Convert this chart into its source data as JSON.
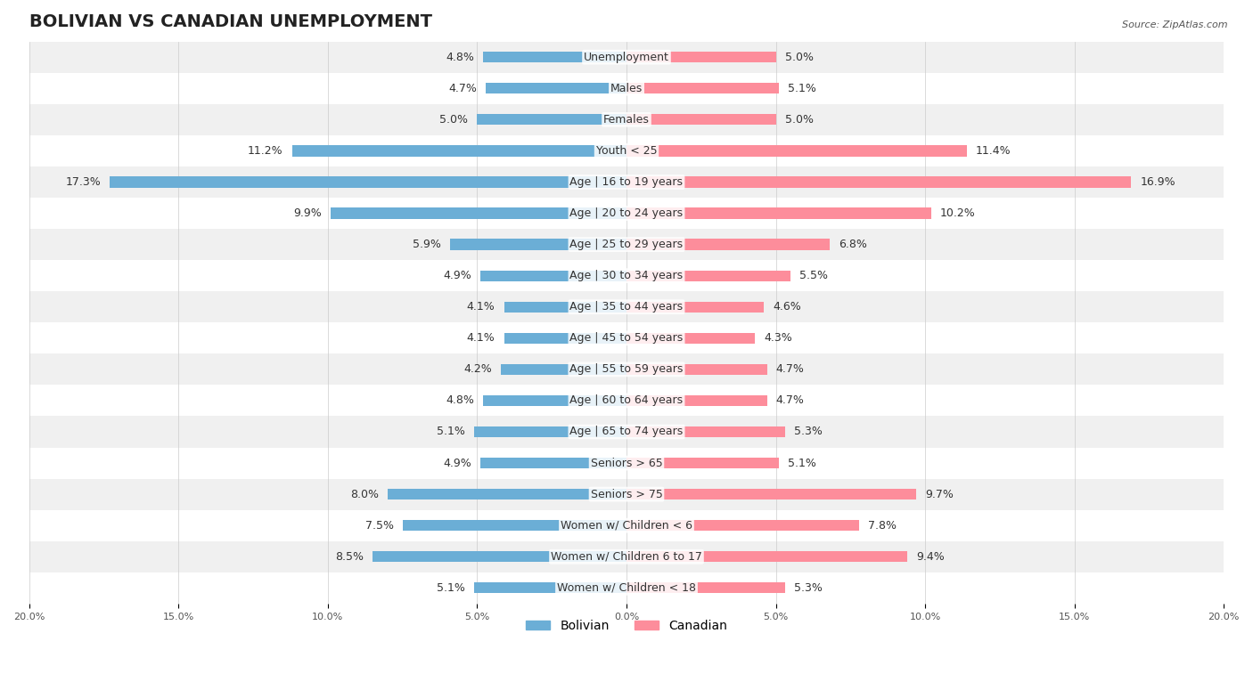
{
  "title": "BOLIVIAN VS CANADIAN UNEMPLOYMENT",
  "source": "Source: ZipAtlas.com",
  "categories": [
    "Unemployment",
    "Males",
    "Females",
    "Youth < 25",
    "Age | 16 to 19 years",
    "Age | 20 to 24 years",
    "Age | 25 to 29 years",
    "Age | 30 to 34 years",
    "Age | 35 to 44 years",
    "Age | 45 to 54 years",
    "Age | 55 to 59 years",
    "Age | 60 to 64 years",
    "Age | 65 to 74 years",
    "Seniors > 65",
    "Seniors > 75",
    "Women w/ Children < 6",
    "Women w/ Children 6 to 17",
    "Women w/ Children < 18"
  ],
  "bolivian": [
    4.8,
    4.7,
    5.0,
    11.2,
    17.3,
    9.9,
    5.9,
    4.9,
    4.1,
    4.1,
    4.2,
    4.8,
    5.1,
    4.9,
    8.0,
    7.5,
    8.5,
    5.1
  ],
  "canadian": [
    5.0,
    5.1,
    5.0,
    11.4,
    16.9,
    10.2,
    6.8,
    5.5,
    4.6,
    4.3,
    4.7,
    4.7,
    5.3,
    5.1,
    9.7,
    7.8,
    9.4,
    5.3
  ],
  "bolivian_color": "#6baed6",
  "canadian_color": "#fd8d9b",
  "bg_row_even": "#f0f0f0",
  "bg_row_odd": "#ffffff",
  "bar_height": 0.35,
  "xlim": 20.0,
  "title_fontsize": 14,
  "label_fontsize": 9,
  "category_fontsize": 9,
  "legend_fontsize": 10
}
